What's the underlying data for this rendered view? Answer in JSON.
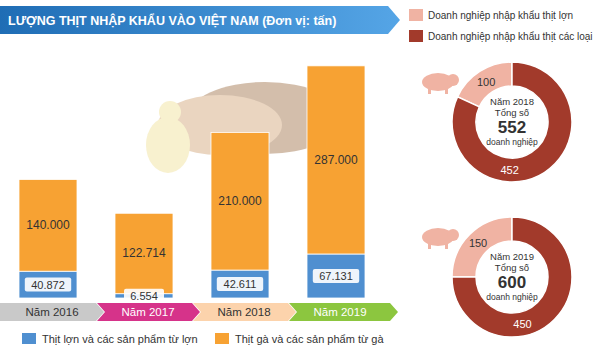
{
  "chart_data": [
    {
      "type": "bar",
      "title": "LƯỢNG THỊT NHẬP KHẨU VÀO VIỆT NAM (Đơn vị: tấn)",
      "categories": [
        "Năm 2016",
        "Năm 2017",
        "Năm 2018",
        "Năm 2019"
      ],
      "series": [
        {
          "name": "Thịt lợn và các sản phẩm từ lợn",
          "color": "#4f8fd0",
          "values": [
            40872,
            6554,
            42611,
            67131
          ],
          "value_labels": [
            "40.872",
            "6.554",
            "42.611",
            "67.131"
          ]
        },
        {
          "name": "Thịt gà và các sản phẩm từ gà",
          "color": "#f7a233",
          "values": [
            140000,
            122714,
            210000,
            287000
          ],
          "value_labels": [
            "140.000",
            "122.714",
            "210.000",
            "287.000"
          ]
        }
      ],
      "ylim": [
        0,
        360000
      ],
      "stacked": true,
      "data_labels": true,
      "tick_labels": false,
      "grid": false,
      "legend": "bottom"
    },
    {
      "type": "pie",
      "categories": [
        "Doanh nghiệp nhập khẩu thịt lợn",
        "Doanh nghiệp nhập khẩu thịt các loại"
      ],
      "colors": [
        "#f0b3a3",
        "#a23a2b"
      ],
      "series": [
        {
          "name": "Năm 2018",
          "values": [
            100,
            452
          ]
        },
        {
          "name": "Năm 2019",
          "values": [
            150,
            450
          ]
        }
      ],
      "totals": [
        552,
        600
      ],
      "total_label": "Tổng số",
      "unit": "doanh nghiệp",
      "data_labels": true,
      "legend": "top"
    }
  ]
}
